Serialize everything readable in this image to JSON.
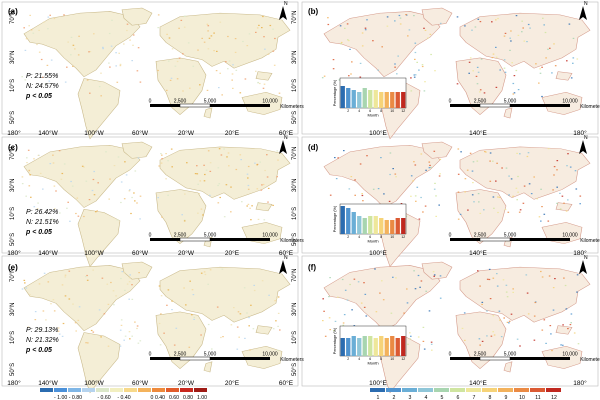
{
  "figure": {
    "panels": [
      {
        "label": "(a)",
        "type": "correlation",
        "stats": {
          "p_line": "P: 21.55%",
          "n_line": "N: 24.57%",
          "sig_line": "p < 0.05"
        }
      },
      {
        "label": "(b)",
        "type": "month",
        "inset": {
          "ylabel": "Percentage (%)",
          "xlabel": "Month",
          "ticks": [
            "2",
            "4",
            "6",
            "8",
            "10",
            "12"
          ],
          "values": [
            11,
            10,
            9,
            8,
            10,
            9,
            9,
            8,
            8,
            8,
            8,
            8
          ]
        }
      },
      {
        "label": "(c)",
        "type": "correlation",
        "stats": {
          "p_line": "P: 26.42%",
          "n_line": "N: 21.51%",
          "sig_line": "p < 0.05"
        }
      },
      {
        "label": "(d)",
        "type": "month",
        "inset": {
          "ylabel": "Percentage (%)",
          "xlabel": "Month",
          "ticks": [
            "2",
            "4",
            "6",
            "8",
            "10",
            "12"
          ],
          "values": [
            14,
            13,
            11,
            9,
            8,
            9,
            9,
            8,
            7,
            7,
            8,
            8
          ]
        }
      },
      {
        "label": "(e)",
        "type": "correlation",
        "stats": {
          "p_line": "P: 29.13%",
          "n_line": "N: 21.32%",
          "sig_line": "p < 0.05"
        }
      },
      {
        "label": "(f)",
        "type": "month",
        "inset": {
          "ylabel": "Percentage (%)",
          "xlabel": "Month",
          "ticks": [
            "2",
            "4",
            "6",
            "8",
            "10",
            "12"
          ],
          "values": [
            9,
            9,
            10,
            9,
            10,
            10,
            9,
            10,
            9,
            10,
            9,
            10
          ]
        }
      }
    ],
    "lat_labels": [
      "70°N",
      "30°N",
      "10°S",
      "50°S"
    ],
    "lon_labels": [
      "180°",
      "140°W",
      "100°W",
      "60°W",
      "20°W",
      "20°E",
      "60°E",
      "100°E",
      "140°E",
      "180°"
    ],
    "north_label": "N",
    "scale_bar": {
      "ticks": [
        "0",
        "2,500",
        "5,000",
        "10,000"
      ],
      "unit": "Kilometers"
    },
    "legend_corr": {
      "labels": [
        "- 1.00 - 0.80",
        "- 0.60",
        "- 0.40",
        "0",
        "0.40",
        "0.60",
        "0.80",
        "1.00"
      ],
      "colors": [
        "#2b6cb0",
        "#4a90d9",
        "#7fb6e6",
        "#b5d3ee",
        "#dbe7c9",
        "#f2efc0",
        "#f7d98a",
        "#f4b35c",
        "#ee8a3c",
        "#e15b2a",
        "#c8281f",
        "#9e1a14"
      ]
    },
    "legend_month": {
      "labels": [
        "1",
        "2",
        "3",
        "4",
        "5",
        "6",
        "7",
        "8",
        "9",
        "10",
        "11",
        "12"
      ],
      "colors": [
        "#2b6cb0",
        "#4f93cf",
        "#6aaed6",
        "#8fc6d8",
        "#a8d5b0",
        "#cfe5a0",
        "#eee79a",
        "#f6d378",
        "#f3b25c",
        "#ea8a44",
        "#db5a33",
        "#c0281f"
      ]
    }
  }
}
